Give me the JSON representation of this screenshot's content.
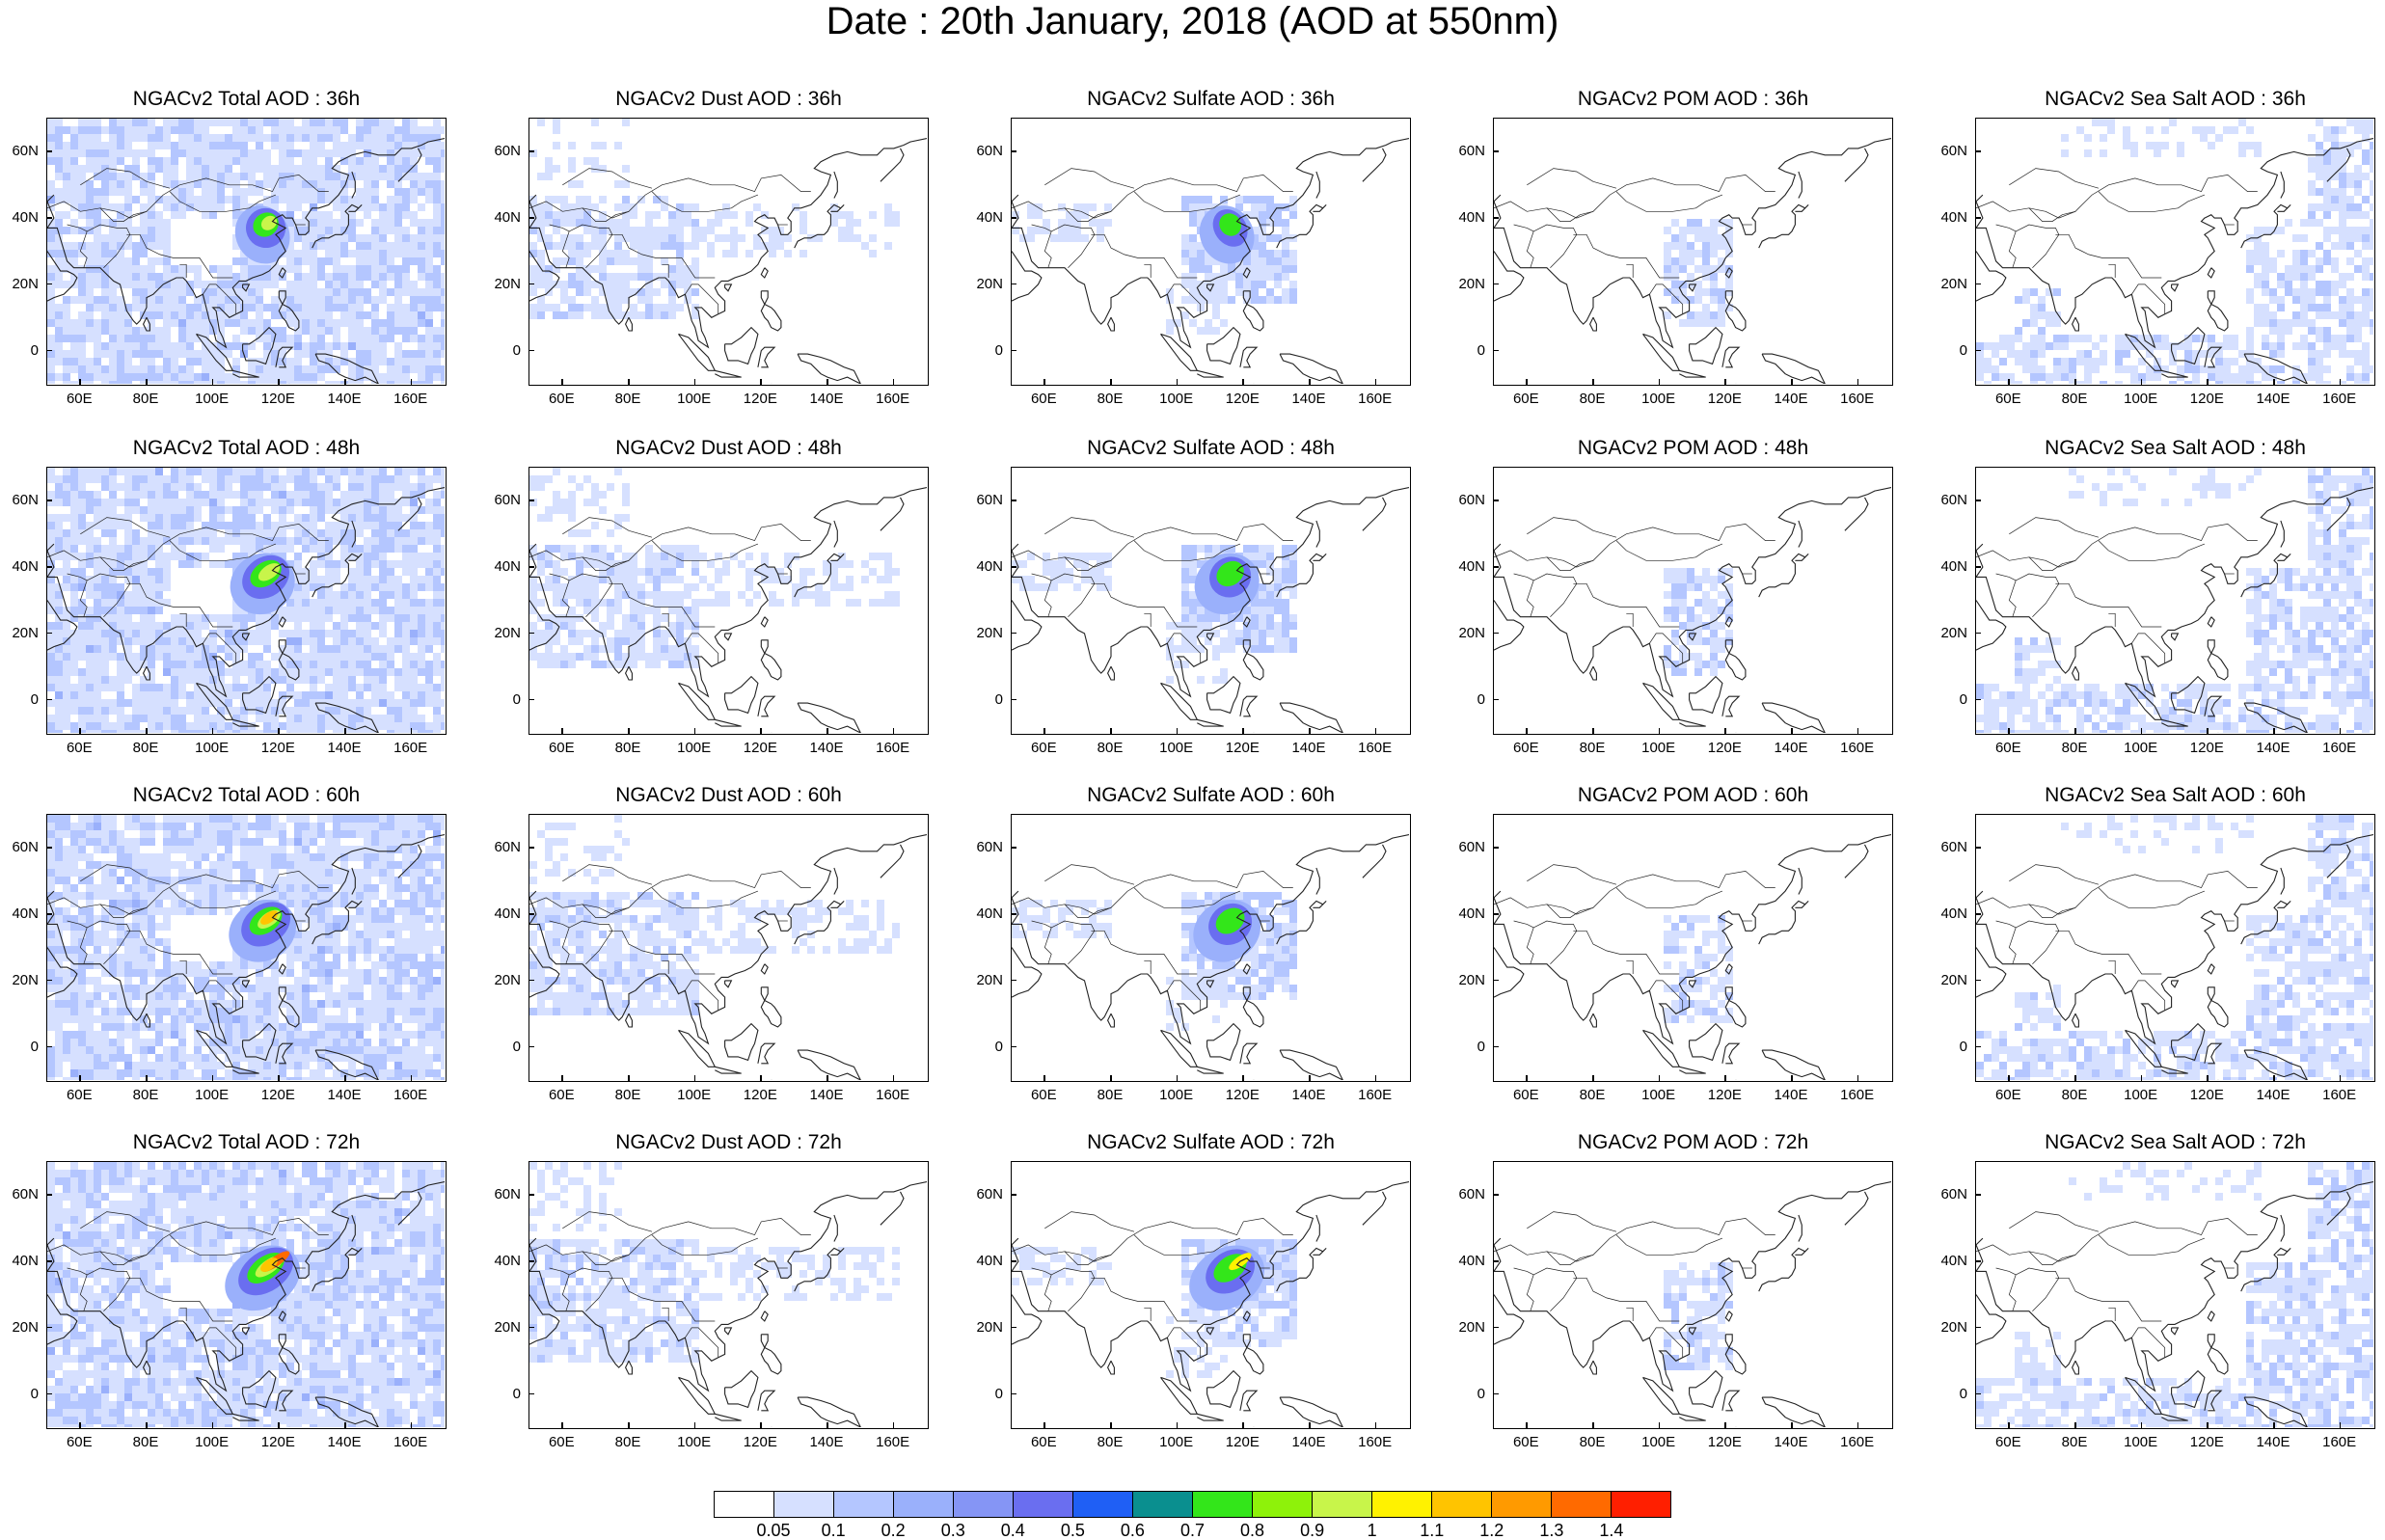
{
  "title": "Date : 20th January, 2018 (AOD at 550nm)",
  "lat_ticks": [
    "60N",
    "40N",
    "20N",
    "0"
  ],
  "lon_ticks": [
    "60E",
    "80E",
    "100E",
    "120E",
    "140E",
    "160E"
  ],
  "rows": [
    {
      "hour": "36h",
      "panels": [
        {
          "title": "NGACv2 Total AOD : 36h",
          "species": "total"
        },
        {
          "title": "NGACv2 Dust AOD : 36h",
          "species": "dust"
        },
        {
          "title": "NGACv2 Sulfate AOD : 36h",
          "species": "sulfate"
        },
        {
          "title": "NGACv2 POM AOD : 36h",
          "species": "pom"
        },
        {
          "title": "NGACv2 Sea Salt AOD : 36h",
          "species": "seasalt"
        }
      ]
    },
    {
      "hour": "48h",
      "panels": [
        {
          "title": "NGACv2 Total AOD : 48h",
          "species": "total"
        },
        {
          "title": "NGACv2 Dust AOD : 48h",
          "species": "dust"
        },
        {
          "title": "NGACv2 Sulfate AOD : 48h",
          "species": "sulfate"
        },
        {
          "title": "NGACv2 POM AOD : 48h",
          "species": "pom"
        },
        {
          "title": "NGACv2 Sea Salt AOD : 48h",
          "species": "seasalt"
        }
      ]
    },
    {
      "hour": "60h",
      "panels": [
        {
          "title": "NGACv2 Total AOD : 60h",
          "species": "total"
        },
        {
          "title": "NGACv2 Dust AOD : 60h",
          "species": "dust"
        },
        {
          "title": "NGACv2 Sulfate AOD : 60h",
          "species": "sulfate"
        },
        {
          "title": "NGACv2 POM AOD : 60h",
          "species": "pom"
        },
        {
          "title": "NGACv2 Sea Salt AOD : 60h",
          "species": "seasalt"
        }
      ]
    },
    {
      "hour": "72h",
      "panels": [
        {
          "title": "NGACv2 Total AOD : 72h",
          "species": "total"
        },
        {
          "title": "NGACv2 Dust AOD : 72h",
          "species": "dust"
        },
        {
          "title": "NGACv2 Sulfate AOD : 72h",
          "species": "sulfate"
        },
        {
          "title": "NGACv2 POM AOD : 72h",
          "species": "pom"
        },
        {
          "title": "NGACv2 Sea Salt  AOD : 72h",
          "species": "seasalt"
        }
      ]
    }
  ],
  "colorbar": {
    "labels": [
      "0.05",
      "0.1",
      "0.2",
      "0.3",
      "0.4",
      "0.5",
      "0.6",
      "0.7",
      "0.8",
      "0.9",
      "1",
      "1.1",
      "1.2",
      "1.3",
      "1.4"
    ],
    "colors": [
      "#ffffff",
      "#d6e0ff",
      "#b4c6ff",
      "#9ab0fb",
      "#8595f5",
      "#6a6ef0",
      "#1f5ff5",
      "#0a8f8f",
      "#33e61a",
      "#8ef20a",
      "#c8f54a",
      "#fff200",
      "#ffc400",
      "#ff9a00",
      "#ff6a00",
      "#ff1f00"
    ]
  },
  "colors": {
    "map_land_line": "#222222",
    "aod_low": "#d6e0ff",
    "aod_mid": "#b4c6ff",
    "aod_high": "#8595f5"
  }
}
